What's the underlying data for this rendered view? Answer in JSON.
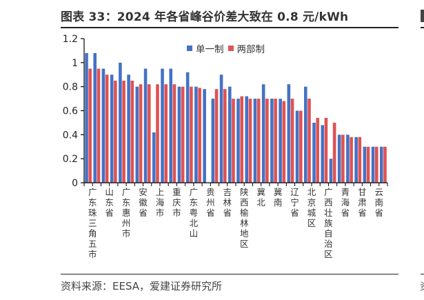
{
  "header": {
    "title": "图表 33：2024 年各省峰谷价差大致在 0.8 元/kWh"
  },
  "footer": {
    "source": "资料来源：EESA，爱建证券研究所"
  },
  "edge": {
    "source_fragment": "资"
  },
  "colors": {
    "series_single": "#4472C4",
    "series_two": "#E05252",
    "axis": "#000000"
  },
  "legend": [
    {
      "label": "单一制",
      "color": "#4472C4"
    },
    {
      "label": "两部制",
      "color": "#E05252"
    }
  ],
  "chart_data": {
    "type": "bar",
    "title": "2024 年各省峰谷价差大致在 0.8 元/kWh",
    "xlabel": "",
    "ylabel": "元/kWh",
    "ylim": [
      0,
      1.2
    ],
    "yticks": [
      "0",
      "0.2",
      "0.4",
      "0.6",
      "0.8",
      "1",
      "1.2"
    ],
    "grid": false,
    "legend_position": "top-right inside",
    "categories": [
      "广东珠三角五市",
      "",
      "山东省",
      "",
      "广东惠州市",
      "",
      "安徽省",
      "",
      "上海市",
      "",
      "重庆市",
      "",
      "广东粤北山",
      "",
      "贵州省",
      "",
      "吉林省",
      "",
      "陕西榆林地区",
      "",
      "冀北",
      "",
      "冀南",
      "",
      "辽宁省",
      "",
      "北京城区",
      "",
      "广西壮族自治区",
      "",
      "青海省",
      "",
      "甘肃省",
      "",
      "云南省",
      ""
    ],
    "series": [
      {
        "name": "单一制",
        "values": [
          1.08,
          1.08,
          0.95,
          0.9,
          1.0,
          0.9,
          0.8,
          0.95,
          0.42,
          0.95,
          0.95,
          0.8,
          0.92,
          0.8,
          0.78,
          0.7,
          0.9,
          0.8,
          0.7,
          0.72,
          0.7,
          0.82,
          0.7,
          0.7,
          0.82,
          0.6,
          0.8,
          0.5,
          0.48,
          0.2,
          0.4,
          0.4,
          0.38,
          0.3,
          0.3,
          0.3
        ]
      },
      {
        "name": "两部制",
        "values": [
          0.95,
          0.95,
          0.9,
          0.85,
          0.85,
          0.85,
          0.82,
          0.82,
          0.82,
          0.82,
          0.82,
          0.8,
          0.8,
          0.79,
          0,
          0.78,
          0.78,
          0.7,
          0.72,
          0.7,
          0.7,
          0.7,
          0.7,
          0.68,
          0.7,
          0.6,
          0.7,
          0.54,
          0.54,
          0.5,
          0.4,
          0.38,
          0.38,
          0.3,
          0.3,
          0.3
        ]
      }
    ]
  }
}
